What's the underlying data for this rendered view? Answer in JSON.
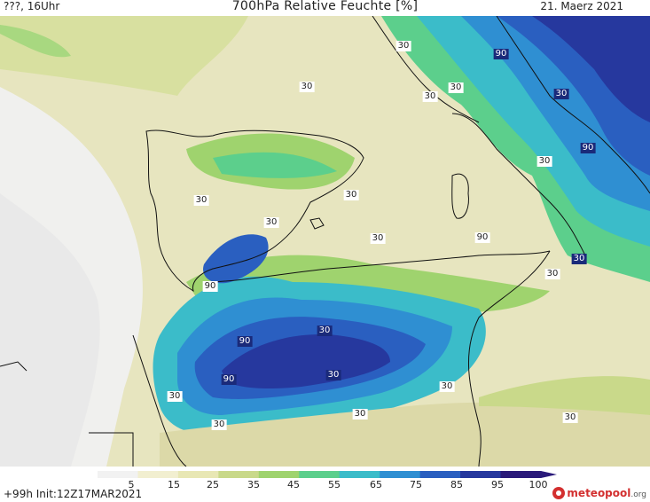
{
  "header": {
    "left": "???, 16Uhr",
    "title": "700hPa Relative Feuchte [%]",
    "date": "21. Maerz 2021"
  },
  "map": {
    "parameter": "Relative humidity 700hPa",
    "contour_labels": [
      {
        "text": "30",
        "dark": false
      },
      {
        "text": "30",
        "dark": false
      },
      {
        "text": "90",
        "dark": true
      },
      {
        "text": "30",
        "dark": false
      },
      {
        "text": "30",
        "dark": false
      },
      {
        "text": "30",
        "dark": true
      },
      {
        "text": "90",
        "dark": true
      },
      {
        "text": "30",
        "dark": false
      },
      {
        "text": "30",
        "dark": false
      },
      {
        "text": "30",
        "dark": false
      },
      {
        "text": "30",
        "dark": false
      },
      {
        "text": "30",
        "dark": false
      },
      {
        "text": "90",
        "dark": true
      },
      {
        "text": "30",
        "dark": false
      },
      {
        "text": "30",
        "dark": false
      },
      {
        "text": "90",
        "dark": true
      },
      {
        "text": "30",
        "dark": true
      },
      {
        "text": "90",
        "dark": true
      },
      {
        "text": "90",
        "dark": true
      },
      {
        "text": "30",
        "dark": false
      },
      {
        "text": "30",
        "dark": false
      },
      {
        "text": "30",
        "dark": false
      },
      {
        "text": "30",
        "dark": false
      },
      {
        "text": "30",
        "dark": false
      },
      {
        "text": "30",
        "dark": false
      }
    ]
  },
  "colorbar": {
    "ticks": [
      "5",
      "15",
      "25",
      "35",
      "45",
      "55",
      "65",
      "75",
      "85",
      "95",
      "100"
    ],
    "colors": [
      "#f2f2f2",
      "#f2efd0",
      "#e8e7b4",
      "#c9d98a",
      "#9fd36e",
      "#5ccf8c",
      "#3bbcc9",
      "#2f8fd2",
      "#2a5fc0",
      "#26389e",
      "#2a1a7a"
    ]
  },
  "footer": {
    "run": "+99h  Init:12Z17MAR2021",
    "logo_main": "meteopool",
    "logo_suffix": ".org"
  },
  "colors": {
    "low": "#f2f2f2",
    "dry": "#e6e3b8",
    "moist": "#62c98c",
    "wet": "#2a5fc0",
    "saturated": "#26389e"
  }
}
